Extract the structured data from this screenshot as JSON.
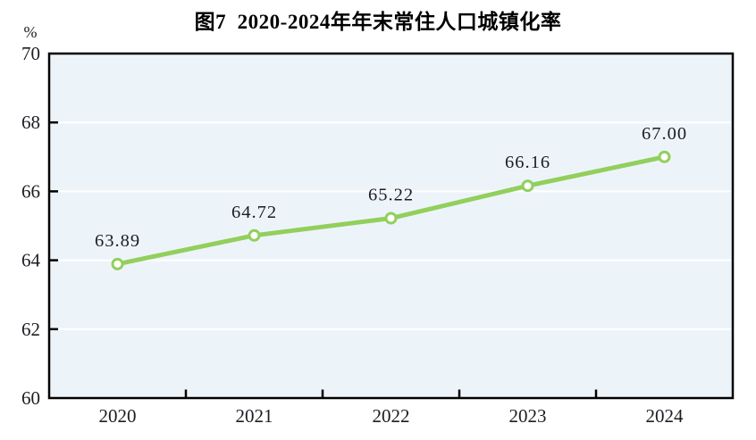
{
  "page": {
    "title": "图7  2020-2024年年末常住人口城镇化率"
  },
  "chart_data": {
    "type": "line",
    "title": "图7  2020-2024年年末常住人口城镇化率",
    "unit_label": "%",
    "categories": [
      "2020",
      "2021",
      "2022",
      "2023",
      "2024"
    ],
    "series": [
      {
        "name": "年末常住人口城镇化率",
        "values": [
          63.89,
          64.72,
          65.22,
          66.16,
          67.0
        ],
        "data_labels": [
          "63.89",
          "64.72",
          "65.22",
          "66.16",
          "67.00"
        ]
      }
    ],
    "xlabel": "",
    "ylabel": "%",
    "ylim": [
      60,
      70
    ],
    "yticks": [
      60,
      62,
      64,
      66,
      68,
      70
    ],
    "grid": true,
    "legend_position": "none",
    "line_color": "#92cf5c",
    "marker": "open-circle",
    "marker_fill": "#ffffff",
    "plot_bg": "#edf4f9",
    "gridline_color": "#ffffff",
    "axis_color": "#000000",
    "text_color": "#1c1c24"
  }
}
